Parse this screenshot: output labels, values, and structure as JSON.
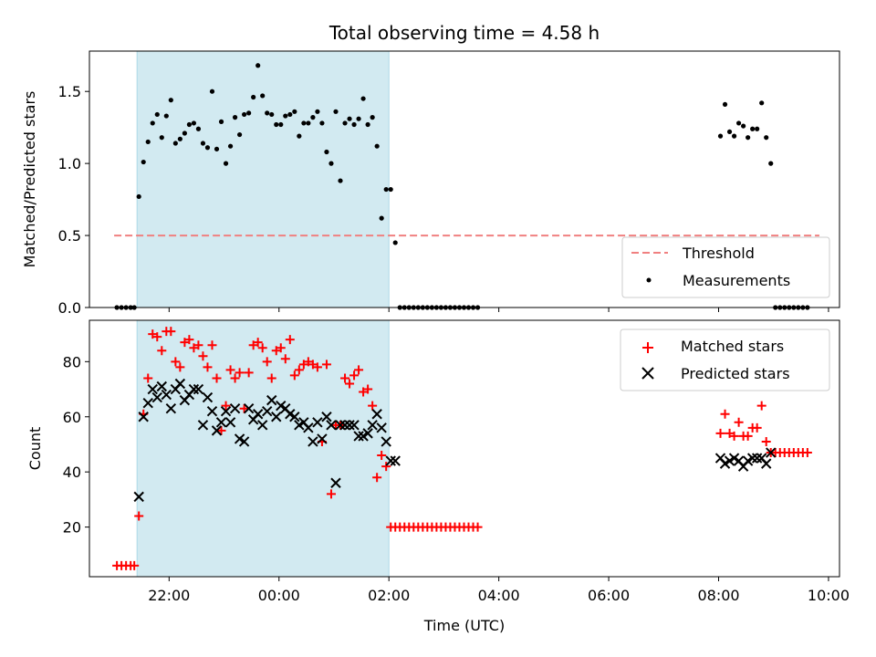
{
  "chart_data": {
    "title": "Total observing time = 4.58 h",
    "xlabel": "Time (UTC)",
    "x_unit": "hours",
    "x_range": [
      20.55,
      10.2
    ],
    "x_ticks": [
      "22:00",
      "00:00",
      "02:00",
      "04:00",
      "06:00",
      "08:00",
      "10:00"
    ],
    "shaded_interval": {
      "start": "21:25",
      "end": "02:00",
      "color": "#add8e6"
    },
    "panels": [
      {
        "id": "ratio",
        "type": "scatter",
        "ylabel": "Matched/Predicted stars",
        "ylim": [
          0,
          1.78
        ],
        "y_ticks": [
          "0.0",
          "0.5",
          "1.0",
          "1.5"
        ],
        "legend_position": "bottom-right",
        "threshold": {
          "name": "Threshold",
          "value": 0.5,
          "x_start": "21:00",
          "x_end": "09:50",
          "color": "#f08080",
          "style": "dashed"
        },
        "series": [
          {
            "name": "Measurements",
            "marker": "dot",
            "color": "#000000",
            "x": [
              "21:03",
              "21:08",
              "21:13",
              "21:18",
              "21:22",
              "21:27",
              "21:32",
              "21:37",
              "21:42",
              "21:47",
              "21:52",
              "21:57",
              "22:02",
              "22:07",
              "22:12",
              "22:17",
              "22:22",
              "22:27",
              "22:32",
              "22:37",
              "22:42",
              "22:47",
              "22:52",
              "22:57",
              "23:02",
              "23:07",
              "23:12",
              "23:17",
              "23:22",
              "23:27",
              "23:32",
              "23:37",
              "23:42",
              "23:47",
              "23:52",
              "23:57",
              "00:02",
              "00:07",
              "00:12",
              "00:17",
              "00:22",
              "00:27",
              "00:32",
              "00:37",
              "00:42",
              "00:47",
              "00:52",
              "00:57",
              "01:02",
              "01:07",
              "01:12",
              "01:17",
              "01:22",
              "01:27",
              "01:32",
              "01:37",
              "01:42",
              "01:47",
              "01:52",
              "01:57",
              "02:02",
              "02:07",
              "02:12",
              "02:17",
              "02:22",
              "02:27",
              "02:32",
              "02:37",
              "02:42",
              "02:47",
              "02:52",
              "02:57",
              "03:02",
              "03:07",
              "03:12",
              "03:17",
              "03:22",
              "03:27",
              "03:32",
              "03:37",
              "08:02",
              "08:07",
              "08:12",
              "08:17",
              "08:22",
              "08:27",
              "08:32",
              "08:37",
              "08:42",
              "08:47",
              "08:52",
              "08:57",
              "09:02",
              "09:07",
              "09:12",
              "09:17",
              "09:22",
              "09:27",
              "09:32",
              "09:37"
            ],
            "y": [
              0,
              0,
              0,
              0,
              0,
              0.77,
              1.01,
              1.15,
              1.28,
              1.34,
              1.18,
              1.33,
              1.44,
              1.14,
              1.17,
              1.21,
              1.27,
              1.28,
              1.24,
              1.14,
              1.11,
              1.5,
              1.1,
              1.29,
              1.0,
              1.12,
              1.32,
              1.2,
              1.34,
              1.35,
              1.46,
              1.68,
              1.47,
              1.35,
              1.34,
              1.27,
              1.27,
              1.33,
              1.34,
              1.36,
              1.19,
              1.28,
              1.28,
              1.32,
              1.36,
              1.28,
              1.08,
              1.0,
              1.36,
              0.88,
              1.28,
              1.31,
              1.27,
              1.31,
              1.45,
              1.27,
              1.32,
              1.12,
              0.62,
              0.82,
              0.82,
              0.45,
              0,
              0,
              0,
              0,
              0,
              0,
              0,
              0,
              0,
              0,
              0,
              0,
              0,
              0,
              0,
              0,
              0,
              0,
              1.19,
              1.41,
              1.22,
              1.19,
              1.28,
              1.26,
              1.18,
              1.24,
              1.24,
              1.42,
              1.18,
              1.0,
              0,
              0,
              0,
              0,
              0,
              0,
              0,
              0
            ]
          }
        ]
      },
      {
        "id": "counts",
        "type": "scatter",
        "ylabel": "Count",
        "ylim": [
          2,
          95
        ],
        "y_ticks": [
          "20",
          "40",
          "60",
          "80"
        ],
        "legend_position": "top-right",
        "series": [
          {
            "name": "Matched stars",
            "marker": "plus",
            "color": "#ff0000",
            "x": [
              "21:03",
              "21:08",
              "21:13",
              "21:18",
              "21:22",
              "21:27",
              "21:32",
              "21:37",
              "21:42",
              "21:47",
              "21:52",
              "21:57",
              "22:02",
              "22:07",
              "22:12",
              "22:17",
              "22:22",
              "22:27",
              "22:32",
              "22:37",
              "22:42",
              "22:47",
              "22:52",
              "22:57",
              "23:02",
              "23:07",
              "23:12",
              "23:17",
              "23:22",
              "23:27",
              "23:32",
              "23:37",
              "23:42",
              "23:47",
              "23:52",
              "23:57",
              "00:02",
              "00:07",
              "00:12",
              "00:17",
              "00:22",
              "00:27",
              "00:32",
              "00:37",
              "00:42",
              "00:47",
              "00:52",
              "00:57",
              "01:02",
              "01:07",
              "01:12",
              "01:17",
              "01:22",
              "01:27",
              "01:32",
              "01:37",
              "01:42",
              "01:47",
              "01:52",
              "01:57",
              "02:02",
              "02:07",
              "02:12",
              "02:17",
              "02:22",
              "02:27",
              "02:32",
              "02:37",
              "02:42",
              "02:47",
              "02:52",
              "02:57",
              "03:02",
              "03:07",
              "03:12",
              "03:17",
              "03:22",
              "03:27",
              "03:32",
              "03:37",
              "08:02",
              "08:07",
              "08:12",
              "08:17",
              "08:22",
              "08:27",
              "08:32",
              "08:37",
              "08:42",
              "08:47",
              "08:52",
              "08:57",
              "09:02",
              "09:07",
              "09:12",
              "09:17",
              "09:22",
              "09:27",
              "09:32",
              "09:37"
            ],
            "y": [
              6,
              6,
              6,
              6,
              6,
              24,
              61,
              74,
              90,
              89,
              84,
              91,
              91,
              80,
              78,
              87,
              88,
              85,
              86,
              82,
              78,
              86,
              74,
              55,
              64,
              77,
              74,
              76,
              63,
              76,
              86,
              87,
              85,
              80,
              74,
              84,
              85,
              81,
              88,
              75,
              77,
              79,
              80,
              79,
              78,
              51,
              79,
              32,
              57,
              57,
              74,
              72,
              75,
              77,
              69,
              70,
              64,
              38,
              46,
              42,
              20,
              20,
              20,
              20,
              20,
              20,
              20,
              20,
              20,
              20,
              20,
              20,
              20,
              20,
              20,
              20,
              20,
              20,
              20,
              20,
              54,
              61,
              54,
              53,
              58,
              53,
              53,
              56,
              56,
              64,
              51,
              47,
              47,
              47,
              47,
              47,
              47,
              47,
              47,
              47
            ]
          },
          {
            "name": "Predicted stars",
            "marker": "x",
            "color": "#000000",
            "x": [
              "21:27",
              "21:32",
              "21:37",
              "21:42",
              "21:47",
              "21:52",
              "21:57",
              "22:02",
              "22:07",
              "22:12",
              "22:17",
              "22:22",
              "22:27",
              "22:32",
              "22:37",
              "22:42",
              "22:47",
              "22:52",
              "22:57",
              "23:02",
              "23:07",
              "23:12",
              "23:17",
              "23:22",
              "23:27",
              "23:32",
              "23:37",
              "23:42",
              "23:47",
              "23:52",
              "23:57",
              "00:02",
              "00:07",
              "00:12",
              "00:17",
              "00:22",
              "00:27",
              "00:32",
              "00:37",
              "00:42",
              "00:47",
              "00:52",
              "00:57",
              "01:02",
              "01:07",
              "01:12",
              "01:17",
              "01:22",
              "01:27",
              "01:32",
              "01:37",
              "01:42",
              "01:47",
              "01:52",
              "01:57",
              "02:02",
              "02:07",
              "08:02",
              "08:07",
              "08:12",
              "08:17",
              "08:22",
              "08:27",
              "08:32",
              "08:37",
              "08:42",
              "08:47",
              "08:52",
              "08:57"
            ],
            "y": [
              31,
              60,
              65,
              70,
              67,
              71,
              68,
              63,
              70,
              72,
              66,
              68,
              70,
              70,
              57,
              67,
              62,
              55,
              58,
              62,
              58,
              63,
              52,
              51,
              63,
              59,
              61,
              57,
              62,
              66,
              60,
              64,
              63,
              61,
              60,
              57,
              58,
              56,
              51,
              58,
              52,
              60,
              57,
              36,
              57,
              57,
              57,
              57,
              53,
              53,
              54,
              57,
              61,
              56,
              51,
              44,
              44,
              45,
              43,
              44,
              45,
              44,
              42,
              44,
              45,
              45,
              45,
              43,
              47
            ]
          }
        ]
      }
    ]
  }
}
